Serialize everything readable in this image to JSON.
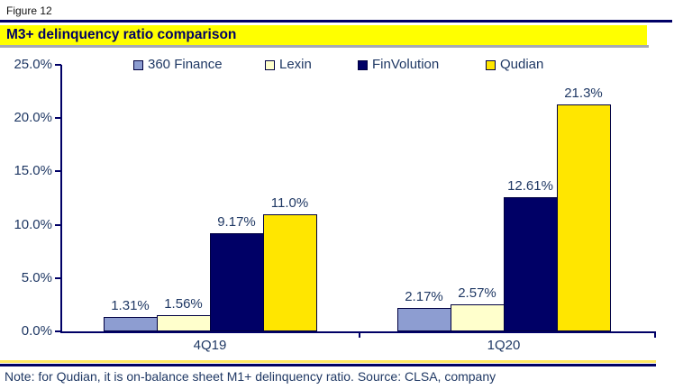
{
  "figure_label": "Figure 12",
  "title": "M3+ delinquency ratio comparison",
  "note": "Note: for Qudian, it is on-balance sheet M1+ delinquency ratio. Source: CLSA, company",
  "colors": {
    "navy": "#000066",
    "label_navy": "#1f3864",
    "title_band_yellow": "#ffff00",
    "gray_rule": "#a6aab4",
    "bottom_yellow_rule": "#ffe763",
    "bar_border": "#000040"
  },
  "chart_data": {
    "type": "bar",
    "title": "M3+ delinquency ratio comparison",
    "categories": [
      "4Q19",
      "1Q20"
    ],
    "series": [
      {
        "name": "360 Finance",
        "color": "#8d9dd1",
        "values": [
          1.31,
          2.17
        ],
        "data_labels": [
          "1.31%",
          "2.17%"
        ]
      },
      {
        "name": "Lexin",
        "color": "#ffffcc",
        "values": [
          1.56,
          2.57
        ],
        "data_labels": [
          "1.56%",
          "2.57%"
        ]
      },
      {
        "name": "FinVolution",
        "color": "#000066",
        "values": [
          9.17,
          12.61
        ],
        "data_labels": [
          "9.17%",
          "12.61%"
        ]
      },
      {
        "name": "Qudian",
        "color": "#ffe600",
        "values": [
          11.0,
          21.3
        ],
        "data_labels": [
          "11.0%",
          "21.3%"
        ]
      }
    ],
    "xlabel": "",
    "ylabel": "",
    "ylim": [
      0,
      25
    ],
    "ytick_values": [
      0,
      5,
      10,
      15,
      20,
      25
    ],
    "ytick_labels": [
      "0.0%",
      "5.0%",
      "10.0%",
      "15.0%",
      "20.0%",
      "25.0%"
    ],
    "grid": false,
    "legend_position": "top"
  }
}
